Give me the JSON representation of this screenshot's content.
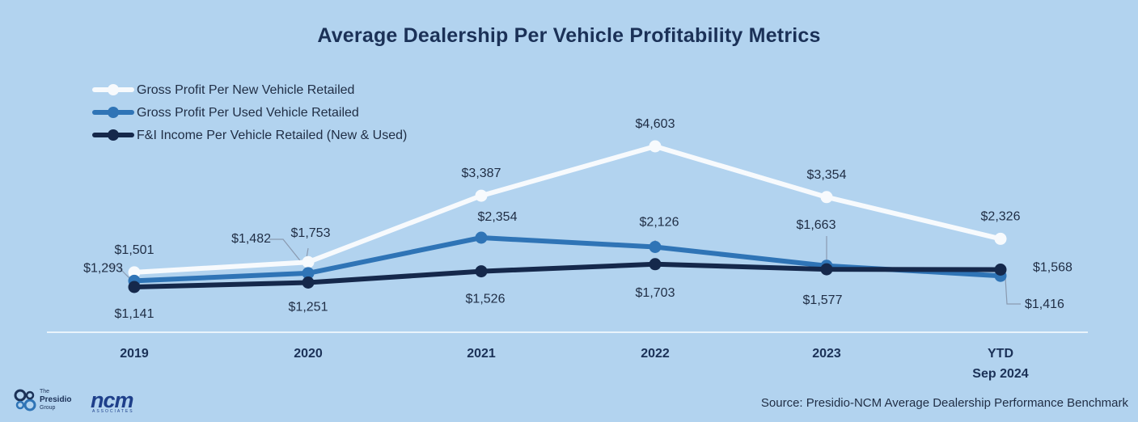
{
  "colors": {
    "background": "#b2d3ef",
    "new_vehicle": "#f7fafd",
    "used_vehicle": "#2f74b6",
    "fi_income": "#15284b",
    "text": "#1f2d44",
    "title": "#1b3157"
  },
  "chart_data": {
    "type": "line",
    "title": "Average Dealership Per Vehicle Profitability Metrics",
    "x": [
      "2019",
      "2020",
      "2021",
      "2022",
      "2023",
      "YTD Sep 2024"
    ],
    "x_tick_labels": [
      [
        "2019"
      ],
      [
        "2020"
      ],
      [
        "2021"
      ],
      [
        "2022"
      ],
      [
        "2023"
      ],
      [
        "YTD",
        "Sep 2024"
      ]
    ],
    "ylim": [
      1000,
      4750
    ],
    "grid": false,
    "legend_position": "top-left",
    "series": [
      {
        "name": "Gross Profit Per New Vehicle Retailed",
        "values": [
          1501,
          1753,
          3387,
          4603,
          3354,
          2326
        ],
        "labels": [
          "$1,501",
          "$1,753",
          "$3,387",
          "$4,603",
          "$3,354",
          "$2,326"
        ]
      },
      {
        "name": "Gross Profit Per Used Vehicle Retailed",
        "values": [
          1293,
          1482,
          2354,
          2126,
          1663,
          1416
        ],
        "labels": [
          "$1,293",
          "$1,482",
          "$2,354",
          "$2,126",
          "$1,663",
          "$1,416"
        ]
      },
      {
        "name": "F&I Income Per Vehicle Retailed (New & Used)",
        "values": [
          1141,
          1251,
          1526,
          1703,
          1577,
          1568
        ],
        "labels": [
          "$1,141",
          "$1,251",
          "$1,526",
          "$1,703",
          "$1,577",
          "$1,568"
        ]
      }
    ]
  },
  "footer": {
    "source": "Source: Presidio-NCM Average Dealership Performance Benchmark",
    "logo_presidio": [
      "The",
      "Presidio",
      "Group"
    ],
    "logo_ncm": "ncm",
    "logo_ncm_sub": "ASSOCIATES"
  }
}
